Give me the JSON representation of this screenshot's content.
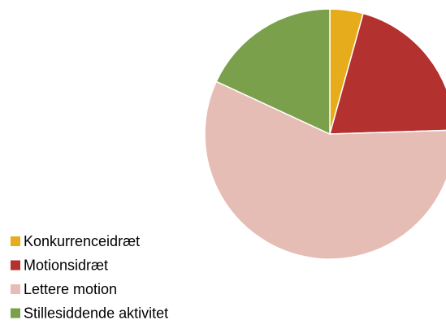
{
  "chart_data": {
    "type": "pie",
    "categories": [
      "Konkurrenceidræt",
      "Motionsidræt",
      "Lettere motion",
      "Stillesiddende aktivitet"
    ],
    "values": [
      4.3,
      20.2,
      57.4,
      18.1
    ],
    "colors": [
      "#e6ac1c",
      "#b3312f",
      "#e6bdb5",
      "#7aa04b"
    ],
    "legend": "bottom-left"
  }
}
